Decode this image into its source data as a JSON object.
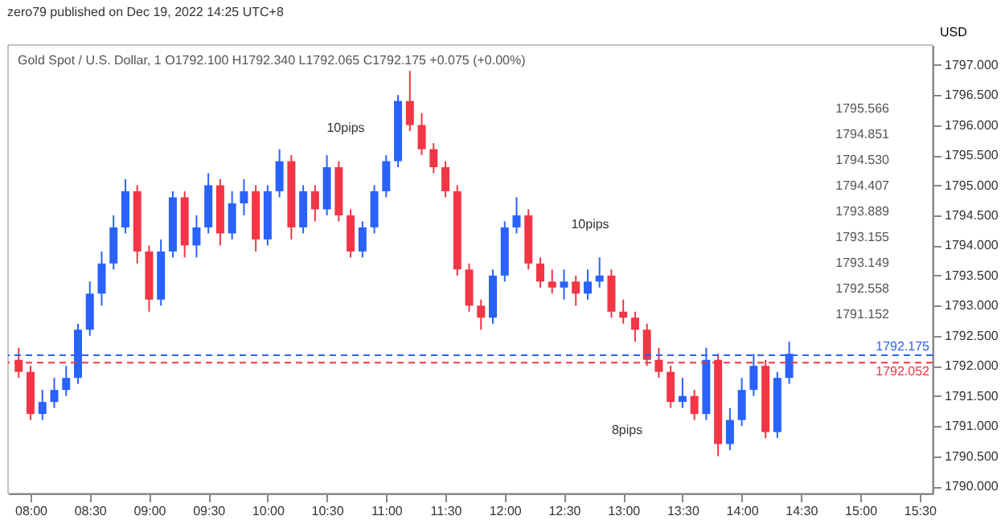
{
  "chart_data": {
    "type": "candlestick",
    "title": "Gold Spot / U.S. Dollar, 1",
    "subtitle": "O1792.100  H1792.340  L1792.065  C1792.175  +0.075 (+0.00%)",
    "ylabel": "USD",
    "x": [
      7.9,
      8.0,
      8.1,
      8.2,
      8.3,
      8.4,
      8.5,
      8.6,
      8.7,
      8.8,
      8.9,
      9.0,
      9.1,
      9.2,
      9.3,
      9.4,
      9.5,
      9.6,
      9.7,
      9.8,
      9.9,
      10.0,
      10.1,
      10.2,
      10.3,
      10.4,
      10.5,
      10.6,
      10.7,
      10.8,
      10.9,
      11.0,
      11.1,
      11.2,
      11.3,
      11.4,
      11.5,
      11.6,
      11.7,
      11.8,
      11.9,
      12.0,
      12.1,
      12.2,
      12.3,
      12.4,
      12.5,
      12.6,
      12.7,
      12.8,
      12.9,
      13.0,
      13.1,
      13.2,
      13.3,
      13.4,
      13.5,
      13.6,
      13.7,
      13.8,
      13.9,
      14.0,
      14.1,
      14.2,
      14.3,
      14.4
    ],
    "ohlc": [
      [
        1792.1,
        1792.3,
        1791.8,
        1791.9
      ],
      [
        1791.9,
        1792.0,
        1791.1,
        1791.2
      ],
      [
        1791.2,
        1791.6,
        1791.1,
        1791.4
      ],
      [
        1791.4,
        1791.8,
        1791.3,
        1791.6
      ],
      [
        1791.6,
        1792.0,
        1791.5,
        1791.8
      ],
      [
        1791.8,
        1792.7,
        1791.7,
        1792.6
      ],
      [
        1792.6,
        1793.4,
        1792.5,
        1793.2
      ],
      [
        1793.2,
        1793.9,
        1793.0,
        1793.7
      ],
      [
        1793.7,
        1794.5,
        1793.6,
        1794.3
      ],
      [
        1794.3,
        1795.1,
        1794.2,
        1794.9
      ],
      [
        1794.9,
        1795.0,
        1793.7,
        1793.9
      ],
      [
        1793.9,
        1794.0,
        1792.9,
        1793.1
      ],
      [
        1793.1,
        1794.1,
        1793.0,
        1793.9
      ],
      [
        1793.9,
        1794.9,
        1793.8,
        1794.8
      ],
      [
        1794.8,
        1794.9,
        1793.8,
        1794.0
      ],
      [
        1794.0,
        1794.5,
        1793.8,
        1794.3
      ],
      [
        1794.3,
        1795.2,
        1794.2,
        1795.0
      ],
      [
        1795.0,
        1795.1,
        1794.0,
        1794.2
      ],
      [
        1794.2,
        1794.9,
        1794.1,
        1794.7
      ],
      [
        1794.7,
        1795.1,
        1794.5,
        1794.9
      ],
      [
        1794.9,
        1795.0,
        1793.9,
        1794.1
      ],
      [
        1794.1,
        1795.0,
        1794.0,
        1794.9
      ],
      [
        1794.9,
        1795.6,
        1794.8,
        1795.4
      ],
      [
        1795.4,
        1795.5,
        1794.1,
        1794.3
      ],
      [
        1794.3,
        1795.0,
        1794.2,
        1794.9
      ],
      [
        1794.9,
        1795.0,
        1794.4,
        1794.6
      ],
      [
        1794.6,
        1795.5,
        1794.5,
        1795.3
      ],
      [
        1795.3,
        1795.4,
        1794.4,
        1794.5
      ],
      [
        1794.5,
        1794.6,
        1793.8,
        1793.9
      ],
      [
        1793.9,
        1794.4,
        1793.8,
        1794.3
      ],
      [
        1794.3,
        1795.0,
        1794.2,
        1794.9
      ],
      [
        1794.9,
        1795.5,
        1794.8,
        1795.4
      ],
      [
        1795.4,
        1796.5,
        1795.3,
        1796.4
      ],
      [
        1796.4,
        1796.9,
        1795.9,
        1796.0
      ],
      [
        1796.0,
        1796.2,
        1795.5,
        1795.6
      ],
      [
        1795.6,
        1795.7,
        1795.2,
        1795.3
      ],
      [
        1795.3,
        1795.4,
        1794.8,
        1794.9
      ],
      [
        1794.9,
        1795.0,
        1793.5,
        1793.6
      ],
      [
        1793.6,
        1793.7,
        1792.9,
        1793.0
      ],
      [
        1793.0,
        1793.1,
        1792.6,
        1792.8
      ],
      [
        1792.8,
        1793.6,
        1792.7,
        1793.5
      ],
      [
        1793.5,
        1794.4,
        1793.4,
        1794.3
      ],
      [
        1794.3,
        1794.8,
        1794.2,
        1794.5
      ],
      [
        1794.5,
        1794.6,
        1793.6,
        1793.7
      ],
      [
        1793.7,
        1793.8,
        1793.3,
        1793.4
      ],
      [
        1793.4,
        1793.6,
        1793.2,
        1793.3
      ],
      [
        1793.3,
        1793.6,
        1793.1,
        1793.4
      ],
      [
        1793.4,
        1793.5,
        1793.0,
        1793.2
      ],
      [
        1793.2,
        1793.6,
        1793.1,
        1793.4
      ],
      [
        1793.4,
        1793.8,
        1793.3,
        1793.5
      ],
      [
        1793.5,
        1793.6,
        1792.8,
        1792.9
      ],
      [
        1792.9,
        1793.1,
        1792.7,
        1792.8
      ],
      [
        1792.8,
        1792.9,
        1792.4,
        1792.6
      ],
      [
        1792.6,
        1792.7,
        1792.0,
        1792.1
      ],
      [
        1792.1,
        1792.3,
        1791.8,
        1791.9
      ],
      [
        1791.9,
        1792.0,
        1791.3,
        1791.4
      ],
      [
        1791.4,
        1791.8,
        1791.3,
        1791.5
      ],
      [
        1791.5,
        1791.6,
        1791.1,
        1791.2
      ],
      [
        1791.2,
        1792.3,
        1791.1,
        1792.1
      ],
      [
        1792.1,
        1792.2,
        1790.5,
        1790.7
      ],
      [
        1790.7,
        1791.3,
        1790.6,
        1791.1
      ],
      [
        1791.1,
        1791.8,
        1791.0,
        1791.6
      ],
      [
        1791.6,
        1792.2,
        1791.5,
        1792.0
      ],
      [
        1792.0,
        1792.1,
        1790.8,
        1790.9
      ],
      [
        1790.9,
        1791.9,
        1790.8,
        1791.8
      ],
      [
        1791.8,
        1792.4,
        1791.7,
        1792.2
      ]
    ],
    "colors": [
      "#f23645",
      "#f23645",
      "#2962ff",
      "#2962ff",
      "#2962ff",
      "#2962ff",
      "#2962ff",
      "#2962ff",
      "#2962ff",
      "#2962ff",
      "#f23645",
      "#f23645",
      "#2962ff",
      "#2962ff",
      "#f23645",
      "#2962ff",
      "#2962ff",
      "#f23645",
      "#2962ff",
      "#2962ff",
      "#f23645",
      "#2962ff",
      "#2962ff",
      "#f23645",
      "#2962ff",
      "#f23645",
      "#2962ff",
      "#f23645",
      "#f23645",
      "#2962ff",
      "#2962ff",
      "#2962ff",
      "#2962ff",
      "#f23645",
      "#f23645",
      "#f23645",
      "#f23645",
      "#f23645",
      "#f23645",
      "#f23645",
      "#2962ff",
      "#2962ff",
      "#2962ff",
      "#f23645",
      "#f23645",
      "#f23645",
      "#2962ff",
      "#f23645",
      "#2962ff",
      "#2962ff",
      "#f23645",
      "#f23645",
      "#f23645",
      "#f23645",
      "#f23645",
      "#f23645",
      "#2962ff",
      "#f23645",
      "#2962ff",
      "#f23645",
      "#2962ff",
      "#2962ff",
      "#2962ff",
      "#f23645",
      "#2962ff",
      "#2962ff"
    ],
    "xlim": [
      7.81,
      15.61
    ],
    "xticks": [
      {
        "value": 8,
        "label": "08:00"
      },
      {
        "value": 8.5,
        "label": "08:30"
      },
      {
        "value": 9,
        "label": "09:00"
      },
      {
        "value": 9.5,
        "label": "09:30"
      },
      {
        "value": 10,
        "label": "10:00"
      },
      {
        "value": 10.5,
        "label": "10:30"
      },
      {
        "value": 11,
        "label": "11:00"
      },
      {
        "value": 11.5,
        "label": "11:30"
      },
      {
        "value": 12,
        "label": "12:00"
      },
      {
        "value": 12.5,
        "label": "12:30"
      },
      {
        "value": 13,
        "label": "13:00"
      },
      {
        "value": 13.5,
        "label": "13:30"
      },
      {
        "value": 14,
        "label": "14:00"
      },
      {
        "value": 14.5,
        "label": "14:30"
      },
      {
        "value": 15,
        "label": "15:00"
      },
      {
        "value": 15.5,
        "label": "15:30"
      }
    ],
    "ylim": [
      1789.88,
      1797.33
    ],
    "yticks": [
      {
        "value": 1790,
        "label": "1790.000"
      },
      {
        "value": 1790.5,
        "label": "1790.500"
      },
      {
        "value": 1791,
        "label": "1791.000"
      },
      {
        "value": 1791.5,
        "label": "1791.500"
      },
      {
        "value": 1792,
        "label": "1792.000"
      },
      {
        "value": 1792.5,
        "label": "1792.500"
      },
      {
        "value": 1793,
        "label": "1793.000"
      },
      {
        "value": 1793.5,
        "label": "1793.500"
      },
      {
        "value": 1794,
        "label": "1794.000"
      },
      {
        "value": 1794.5,
        "label": "1794.500"
      },
      {
        "value": 1795,
        "label": "1795.000"
      },
      {
        "value": 1795.5,
        "label": "1795.500"
      },
      {
        "value": 1796,
        "label": "1796.000"
      },
      {
        "value": 1796.5,
        "label": "1796.500"
      },
      {
        "value": 1797,
        "label": "1797.000"
      }
    ],
    "ref_lines": [
      {
        "axis": "y",
        "value": 1792.175,
        "label": "1792.175",
        "color": "#2962ff",
        "line_style": "dashed"
      },
      {
        "axis": "y",
        "value": 1792.052,
        "label": "1792.052",
        "color": "#f23645",
        "line_style": "dashed"
      }
    ],
    "annotations": [
      "zero79 published on Dec 19, 2022 14:25 UTC+8",
      "10pips",
      "10pips",
      "8pips",
      "1795.566",
      "1794.851",
      "1794.530",
      "1794.407",
      "1793.889",
      "1793.155",
      "1793.149",
      "1792.558",
      "1791.152"
    ],
    "grid": false
  }
}
